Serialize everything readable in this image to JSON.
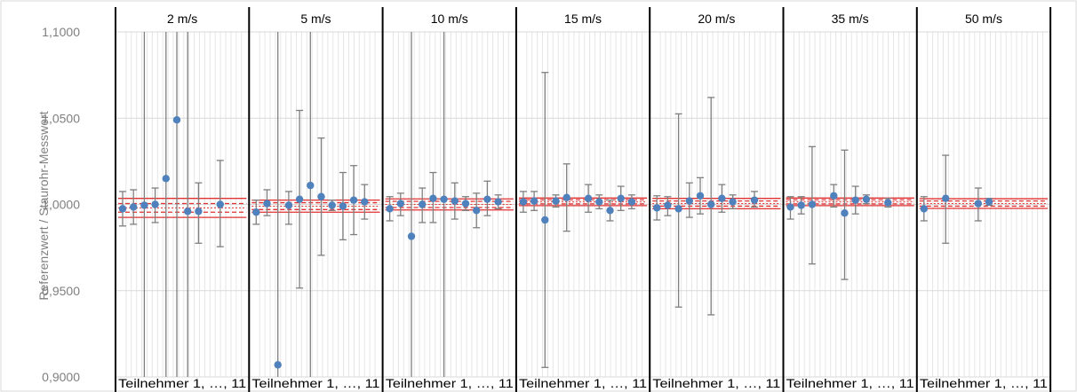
{
  "chart_data": {
    "type": "scatter",
    "ylabel": "Referenzwert / Staurohr-Messwert",
    "ylim": [
      0.9,
      1.1
    ],
    "yticks": [
      "1,1000",
      "1,0500",
      "1,0000",
      "0,9500",
      "0,9000"
    ],
    "ytick_values": [
      1.1,
      1.05,
      1.0,
      0.95,
      0.9
    ],
    "grid": true,
    "colors": {
      "point": "#4f81bd",
      "errorbar": "#7f7f7f",
      "reference": "#e03030",
      "panel_border": "#000000",
      "grid": "#e6e6e6"
    },
    "panels": [
      {
        "title": "2 m/s",
        "xlabel": "Teilnehmer 1, …, 11",
        "points": [
          {
            "p": 1,
            "y": 0.9975,
            "lo": 0.9875,
            "hi": 1.0075
          },
          {
            "p": 2,
            "y": 0.9985,
            "lo": 0.9885,
            "hi": 1.0085
          },
          {
            "p": 3,
            "y": 0.9995,
            "lo": 0.9,
            "hi": 1.1
          },
          {
            "p": 4,
            "y": 1.0,
            "lo": 0.9895,
            "hi": 1.0095
          },
          {
            "p": 5,
            "y": 1.015,
            "lo": 0.9,
            "hi": 1.1
          },
          {
            "p": 6,
            "y": 1.049,
            "lo": 0.9,
            "hi": 1.1
          },
          {
            "p": 7,
            "y": 0.996,
            "lo": 0.9,
            "hi": 1.1
          },
          {
            "p": 8,
            "y": 0.996,
            "lo": 0.9775,
            "hi": 1.0125
          },
          {
            "p": 10,
            "y": 1.0,
            "lo": 0.9755,
            "hi": 1.0255
          }
        ],
        "ref": {
          "center": 0.998,
          "inner": 0.0025,
          "outer": 0.0055
        }
      },
      {
        "title": "5 m/s",
        "xlabel": "Teilnehmer 1, …, 11",
        "points": [
          {
            "p": 1,
            "y": 0.9955,
            "lo": 0.9885,
            "hi": 1.0025
          },
          {
            "p": 2,
            "y": 1.0005,
            "lo": 0.9935,
            "hi": 1.0085
          },
          {
            "p": 3,
            "y": 0.907,
            "lo": 0.9,
            "hi": 1.1
          },
          {
            "p": 4,
            "y": 0.9995,
            "lo": 0.9885,
            "hi": 1.0075
          },
          {
            "p": 5,
            "y": 1.003,
            "lo": 0.9515,
            "hi": 1.0545
          },
          {
            "p": 6,
            "y": 1.011,
            "lo": 0.9,
            "hi": 1.1
          },
          {
            "p": 7,
            "y": 1.0045,
            "lo": 0.9705,
            "hi": 1.0385
          },
          {
            "p": 8,
            "y": 0.9995,
            "lo": 0.9965,
            "hi": 1.0025
          },
          {
            "p": 9,
            "y": 0.999,
            "lo": 0.9795,
            "hi": 1.0185
          },
          {
            "p": 10,
            "y": 1.0025,
            "lo": 0.9825,
            "hi": 1.0225
          },
          {
            "p": 11,
            "y": 1.0015,
            "lo": 0.9915,
            "hi": 1.0115
          }
        ],
        "ref": {
          "center": 0.999,
          "inner": 0.002,
          "outer": 0.0035
        }
      },
      {
        "title": "10 m/s",
        "xlabel": "Teilnehmer 1, …, 11",
        "points": [
          {
            "p": 1,
            "y": 0.9975,
            "lo": 0.9905,
            "hi": 1.0045
          },
          {
            "p": 2,
            "y": 1.0005,
            "lo": 0.9935,
            "hi": 1.0065
          },
          {
            "p": 3,
            "y": 0.9815,
            "lo": 0.9,
            "hi": 1.1
          },
          {
            "p": 4,
            "y": 1.0,
            "lo": 0.9895,
            "hi": 1.0095
          },
          {
            "p": 5,
            "y": 1.0035,
            "lo": 0.9895,
            "hi": 1.0185
          },
          {
            "p": 6,
            "y": 1.003,
            "lo": 0.9,
            "hi": 1.1
          },
          {
            "p": 7,
            "y": 1.002,
            "lo": 0.9915,
            "hi": 1.0125
          },
          {
            "p": 8,
            "y": 1.0005,
            "lo": 0.9965,
            "hi": 1.0045
          },
          {
            "p": 9,
            "y": 0.9965,
            "lo": 0.9865,
            "hi": 1.0065
          },
          {
            "p": 10,
            "y": 1.003,
            "lo": 0.9935,
            "hi": 1.0135
          },
          {
            "p": 11,
            "y": 1.0015,
            "lo": 0.9975,
            "hi": 1.0055
          }
        ],
        "ref": {
          "center": 1.0,
          "inner": 0.0018,
          "outer": 0.0032
        }
      },
      {
        "title": "15 m/s",
        "xlabel": "Teilnehmer 1, …, 11",
        "points": [
          {
            "p": 1,
            "y": 1.0015,
            "lo": 0.9955,
            "hi": 1.0075
          },
          {
            "p": 2,
            "y": 1.002,
            "lo": 0.9965,
            "hi": 1.0075
          },
          {
            "p": 3,
            "y": 0.991,
            "lo": 0.9055,
            "hi": 1.0765
          },
          {
            "p": 4,
            "y": 1.002,
            "lo": 0.9985,
            "hi": 1.0055
          },
          {
            "p": 5,
            "y": 1.004,
            "lo": 0.9845,
            "hi": 1.0235
          },
          {
            "p": 7,
            "y": 1.0035,
            "lo": 0.9955,
            "hi": 1.0115
          },
          {
            "p": 8,
            "y": 1.0015,
            "lo": 0.9975,
            "hi": 1.0055
          },
          {
            "p": 9,
            "y": 0.9965,
            "lo": 0.9905,
            "hi": 1.0025
          },
          {
            "p": 10,
            "y": 1.0035,
            "lo": 0.9965,
            "hi": 1.0105
          },
          {
            "p": 11,
            "y": 1.0015,
            "lo": 0.9975,
            "hi": 1.0055
          }
        ],
        "ref": {
          "center": 1.0015,
          "inner": 0.0012,
          "outer": 0.0022
        }
      },
      {
        "title": "20 m/s",
        "xlabel": "Teilnehmer 1, …, 11",
        "points": [
          {
            "p": 1,
            "y": 0.998,
            "lo": 0.991,
            "hi": 1.005
          },
          {
            "p": 2,
            "y": 0.9995,
            "lo": 0.9935,
            "hi": 1.0045
          },
          {
            "p": 3,
            "y": 0.9975,
            "lo": 0.9405,
            "hi": 1.0525
          },
          {
            "p": 4,
            "y": 1.002,
            "lo": 0.9925,
            "hi": 1.0125
          },
          {
            "p": 5,
            "y": 1.005,
            "lo": 0.9945,
            "hi": 1.0155
          },
          {
            "p": 6,
            "y": 1.0,
            "lo": 0.936,
            "hi": 1.062
          },
          {
            "p": 7,
            "y": 1.0035,
            "lo": 0.9955,
            "hi": 1.0115
          },
          {
            "p": 8,
            "y": 1.0015,
            "lo": 0.9975,
            "hi": 1.0055
          },
          {
            "p": 10,
            "y": 1.0025,
            "lo": 0.9985,
            "hi": 1.0075
          }
        ],
        "ref": {
          "center": 1.0005,
          "inner": 0.0015,
          "outer": 0.003
        }
      },
      {
        "title": "35 m/s",
        "xlabel": "Teilnehmer 1, …, 11",
        "points": [
          {
            "p": 1,
            "y": 0.9985,
            "lo": 0.9915,
            "hi": 1.0045
          },
          {
            "p": 2,
            "y": 0.9995,
            "lo": 0.9945,
            "hi": 1.0045
          },
          {
            "p": 3,
            "y": 1.0,
            "lo": 0.9655,
            "hi": 1.0335
          },
          {
            "p": 5,
            "y": 1.005,
            "lo": 0.9985,
            "hi": 1.0115
          },
          {
            "p": 6,
            "y": 0.995,
            "lo": 0.9565,
            "hi": 1.0315
          },
          {
            "p": 7,
            "y": 1.0025,
            "lo": 0.9945,
            "hi": 1.0105
          },
          {
            "p": 8,
            "y": 1.003,
            "lo": 1.0005,
            "hi": 1.0055
          },
          {
            "p": 10,
            "y": 1.001,
            "lo": 0.9985,
            "hi": 1.0035
          }
        ],
        "ref": {
          "center": 1.0015,
          "inner": 0.0012,
          "outer": 0.0022
        }
      },
      {
        "title": "50 m/s",
        "xlabel": "Teilnehmer 1, …, 11",
        "points": [
          {
            "p": 1,
            "y": 0.9975,
            "lo": 0.9905,
            "hi": 1.0045
          },
          {
            "p": 3,
            "y": 1.0035,
            "lo": 0.9775,
            "hi": 1.0285
          },
          {
            "p": 6,
            "y": 1.0005,
            "lo": 0.9905,
            "hi": 1.0095
          },
          {
            "p": 7,
            "y": 1.0015,
            "lo": 0.9995,
            "hi": 1.0035
          }
        ],
        "ref": {
          "center": 1.0005,
          "inner": 0.0015,
          "outer": 0.0028
        }
      }
    ]
  }
}
